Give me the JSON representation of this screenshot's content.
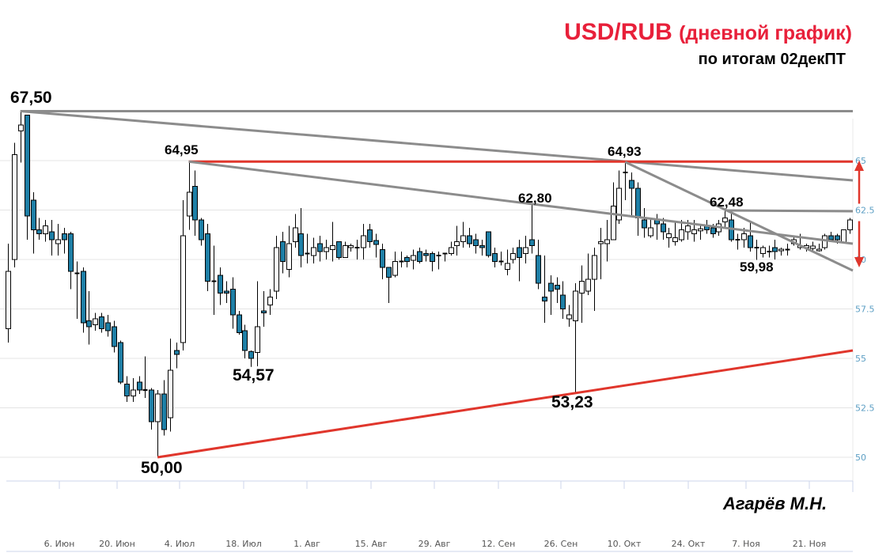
{
  "header": {
    "title_main": "USD/RUB",
    "title_paren": "(дневной график)",
    "subtitle": "по итогам 02декПТ"
  },
  "author": "Агарёв М.Н.",
  "colors": {
    "bull_candle": "#ffffff",
    "bear_candle": "#1e7fa6",
    "trendline_gray": "#8c8c8c",
    "trendline_red": "#e0362c",
    "title_red": "#e8203a",
    "axis_label": "#5d9fc4",
    "grid": "#e4e4e4"
  },
  "chart_data": {
    "type": "candlestick",
    "title": "USD/RUB (дневной график)",
    "subtitle": "по итогам 02декПТ",
    "ylim": [
      49,
      68.5
    ],
    "y_ticks": [
      50,
      52.5,
      55,
      57.5,
      60,
      62.5,
      65
    ],
    "y_tick_labels": [
      "50",
      "52.5",
      "55",
      "57.5",
      "60",
      "62.5",
      "65"
    ],
    "x_tick_labels": [
      "6. Июн",
      "20. Июн",
      "4. Июл",
      "18. Июл",
      "1. Авг",
      "15. Авг",
      "29. Авг",
      "12. Сен",
      "26. Сен",
      "10. Окт",
      "24. Окт",
      "7. Ноя",
      "21. Ноя"
    ],
    "grid": true,
    "ohlc_fields": [
      "open",
      "high",
      "low",
      "close"
    ],
    "candles": [
      [
        56.5,
        60.8,
        55.8,
        59.4
      ],
      [
        60.0,
        65.9,
        59.6,
        65.3
      ],
      [
        66.5,
        67.5,
        64.9,
        66.8
      ],
      [
        67.3,
        67.3,
        61.0,
        62.2
      ],
      [
        63.0,
        63.4,
        60.3,
        61.5
      ],
      [
        61.5,
        62.1,
        61.0,
        61.3
      ],
      [
        61.3,
        62.0,
        60.9,
        61.7
      ],
      [
        61.4,
        62.0,
        60.2,
        61.0
      ],
      [
        60.8,
        61.8,
        60.2,
        61.0
      ],
      [
        61.3,
        61.6,
        60.3,
        61.0
      ],
      [
        61.3,
        61.4,
        58.5,
        59.4
      ],
      [
        59.3,
        59.9,
        57.0,
        59.3
      ],
      [
        59.4,
        59.6,
        56.3,
        56.8
      ],
      [
        56.9,
        58.4,
        55.7,
        56.6
      ],
      [
        56.7,
        57.3,
        56.4,
        57.0
      ],
      [
        57.1,
        57.3,
        56.3,
        56.5
      ],
      [
        56.8,
        57.2,
        56.1,
        56.4
      ],
      [
        56.6,
        56.9,
        55.3,
        55.6
      ],
      [
        55.8,
        55.9,
        53.7,
        53.8
      ],
      [
        53.7,
        54.1,
        52.8,
        53.1
      ],
      [
        53.1,
        54.0,
        52.8,
        53.4
      ],
      [
        53.8,
        54.1,
        53.2,
        53.4
      ],
      [
        53.4,
        55.1,
        53.0,
        53.4
      ],
      [
        53.4,
        53.5,
        51.4,
        51.8
      ],
      [
        51.8,
        53.4,
        50.0,
        53.2
      ],
      [
        53.2,
        53.9,
        51.1,
        51.4
      ],
      [
        52.0,
        56.0,
        51.3,
        54.4
      ],
      [
        55.4,
        55.8,
        54.5,
        55.2
      ],
      [
        55.8,
        63.0,
        55.4,
        61.2
      ],
      [
        62.2,
        64.95,
        61.5,
        63.4
      ],
      [
        63.7,
        64.5,
        61.2,
        62.0
      ],
      [
        62.0,
        62.1,
        60.7,
        61.0
      ],
      [
        61.3,
        61.8,
        58.4,
        58.9
      ],
      [
        58.9,
        60.7,
        57.2,
        58.9
      ],
      [
        59.2,
        59.6,
        57.7,
        58.3
      ],
      [
        58.4,
        58.9,
        57.8,
        58.3
      ],
      [
        58.5,
        59.1,
        56.5,
        57.2
      ],
      [
        57.2,
        57.4,
        56.2,
        56.3
      ],
      [
        56.4,
        56.7,
        55.0,
        55.4
      ],
      [
        55.35,
        55.4,
        54.57,
        55.0
      ],
      [
        55.3,
        58.9,
        54.6,
        56.6
      ],
      [
        57.4,
        58.4,
        56.6,
        57.3
      ],
      [
        57.7,
        58.5,
        57.2,
        58.1
      ],
      [
        58.4,
        61.2,
        58.0,
        60.6
      ],
      [
        60.9,
        61.4,
        59.3,
        59.9
      ],
      [
        59.5,
        61.7,
        59.1,
        60.8
      ],
      [
        60.9,
        62.3,
        60.6,
        61.6
      ],
      [
        61.3,
        62.6,
        59.6,
        60.2
      ],
      [
        60.3,
        61.3,
        59.8,
        60.3
      ],
      [
        60.2,
        61.1,
        59.8,
        60.6
      ],
      [
        60.8,
        61.2,
        59.9,
        60.4
      ],
      [
        60.4,
        61.0,
        60.0,
        60.6
      ],
      [
        60.5,
        61.9,
        59.9,
        60.7
      ],
      [
        60.9,
        60.9,
        60.0,
        60.1
      ],
      [
        60.1,
        60.9,
        60.1,
        60.7
      ],
      [
        60.6,
        60.8,
        60.4,
        60.7
      ],
      [
        60.6,
        61.0,
        60.0,
        60.6
      ],
      [
        60.6,
        61.8,
        60.0,
        61.2
      ],
      [
        61.5,
        61.8,
        60.6,
        60.9
      ],
      [
        60.96,
        61.3,
        60.1,
        60.76
      ],
      [
        60.5,
        60.8,
        59.0,
        59.6
      ],
      [
        59.6,
        59.6,
        57.8,
        59.1
      ],
      [
        59.2,
        60.4,
        59.1,
        59.9
      ],
      [
        59.9,
        60.4,
        59.6,
        59.9
      ],
      [
        60.1,
        60.2,
        59.6,
        59.9
      ],
      [
        59.96,
        60.5,
        59.5,
        60.2
      ],
      [
        60.4,
        60.6,
        59.8,
        59.9
      ],
      [
        60.3,
        60.5,
        59.9,
        60.2
      ],
      [
        60.3,
        60.4,
        59.4,
        59.9
      ],
      [
        60.2,
        60.4,
        59.5,
        60.2
      ],
      [
        60.3,
        60.3,
        59.9,
        60.3
      ],
      [
        60.3,
        60.9,
        60.2,
        60.6
      ],
      [
        60.7,
        61.7,
        60.2,
        60.9
      ],
      [
        60.9,
        61.9,
        60.6,
        61.2
      ],
      [
        61.2,
        61.6,
        60.6,
        60.8
      ],
      [
        61.0,
        61.3,
        60.3,
        60.7
      ],
      [
        60.7,
        61.0,
        60.2,
        60.6
      ],
      [
        61.4,
        61.4,
        60.1,
        60.2
      ],
      [
        60.3,
        60.6,
        59.6,
        59.9
      ],
      [
        59.9,
        60.4,
        59.7,
        59.9
      ],
      [
        59.5,
        60.5,
        59.2,
        59.8
      ],
      [
        60.0,
        60.6,
        59.8,
        60.3
      ],
      [
        60.6,
        61.0,
        58.9,
        60.1
      ],
      [
        60.3,
        61.2,
        59.8,
        60.6
      ],
      [
        61.0,
        62.8,
        60.3,
        60.7
      ],
      [
        60.2,
        61.0,
        58.5,
        58.8
      ],
      [
        58.1,
        60.2,
        56.8,
        57.9
      ],
      [
        58.8,
        59.2,
        57.2,
        58.4
      ],
      [
        58.7,
        59.1,
        57.8,
        58.5
      ],
      [
        58.2,
        58.9,
        57.0,
        57.5
      ],
      [
        57.0,
        57.7,
        56.6,
        57.2
      ],
      [
        56.9,
        58.8,
        53.23,
        58.4
      ],
      [
        58.3,
        59.7,
        56.8,
        58.9
      ],
      [
        58.4,
        60.3,
        58.2,
        59.0
      ],
      [
        59.0,
        60.6,
        57.4,
        60.2
      ],
      [
        60.8,
        61.6,
        59.0,
        60.9
      ],
      [
        60.8,
        62.0,
        59.9,
        61.0
      ],
      [
        61.0,
        63.9,
        61.0,
        62.7
      ],
      [
        62.0,
        64.5,
        61.8,
        63.6
      ],
      [
        64.4,
        64.93,
        63.0,
        64.4
      ],
      [
        64.0,
        64.4,
        62.2,
        63.6
      ],
      [
        63.6,
        63.9,
        61.2,
        62.1
      ],
      [
        62.0,
        62.6,
        61.1,
        61.6
      ],
      [
        61.2,
        62.1,
        61.1,
        61.6
      ],
      [
        62.0,
        62.3,
        61.0,
        61.8
      ],
      [
        61.8,
        62.1,
        61.0,
        61.4
      ],
      [
        61.1,
        61.6,
        60.6,
        61.3
      ],
      [
        60.9,
        61.9,
        60.7,
        61.1
      ],
      [
        61.0,
        62.0,
        60.9,
        61.5
      ],
      [
        61.4,
        62.0,
        61.0,
        61.7
      ],
      [
        61.3,
        62.0,
        60.9,
        61.5
      ],
      [
        61.45,
        61.8,
        61.0,
        61.55
      ],
      [
        61.7,
        62.0,
        61.3,
        61.5
      ],
      [
        61.6,
        61.8,
        61.1,
        61.3
      ],
      [
        61.4,
        62.0,
        61.2,
        61.8
      ],
      [
        61.9,
        62.48,
        61.6,
        62.1
      ],
      [
        62.0,
        62.3,
        60.9,
        61.0
      ],
      [
        61.0,
        61.3,
        60.5,
        61.0
      ],
      [
        61.0,
        61.6,
        60.6,
        61.3
      ],
      [
        61.2,
        61.9,
        60.4,
        60.6
      ],
      [
        60.6,
        61.0,
        59.98,
        60.6
      ],
      [
        60.3,
        60.7,
        60.1,
        60.6
      ],
      [
        60.4,
        60.7,
        60.1,
        60.4
      ],
      [
        60.6,
        61.0,
        60.0,
        60.4
      ],
      [
        60.44,
        60.6,
        60.2,
        60.52
      ],
      [
        60.5,
        60.8,
        60.2,
        60.5
      ],
      [
        60.8,
        61.2,
        60.7,
        61.0
      ],
      [
        60.6,
        61.3,
        60.5,
        60.7
      ],
      [
        60.6,
        60.8,
        60.4,
        60.7
      ],
      [
        60.56,
        60.9,
        60.4,
        60.68
      ],
      [
        60.44,
        60.8,
        60.4,
        60.52
      ],
      [
        60.6,
        61.3,
        60.5,
        61.2
      ],
      [
        61.2,
        61.4,
        60.9,
        61.0
      ],
      [
        61.2,
        61.3,
        60.8,
        61.0
      ],
      [
        60.85,
        61.5,
        60.8,
        61.5
      ],
      [
        61.5,
        62.1,
        61.3,
        62.0
      ]
    ],
    "trendlines": [
      {
        "color": "gray",
        "from": {
          "candle": 2,
          "price": 67.5
        },
        "to": {
          "candle": "end",
          "price": 67.5
        }
      },
      {
        "color": "gray",
        "from": {
          "candle": 2,
          "price": 67.5
        },
        "to": {
          "candle": "end",
          "price": 64.0
        }
      },
      {
        "color": "red",
        "from": {
          "candle": 29,
          "price": 64.95
        },
        "to": {
          "candle": "end",
          "price": 64.95
        }
      },
      {
        "color": "gray",
        "from": {
          "candle": 29,
          "price": 64.95
        },
        "to": {
          "candle": "end",
          "price": 60.8
        }
      },
      {
        "color": "gray",
        "from": {
          "candle": 99,
          "price": 64.93
        },
        "to": {
          "candle": "end",
          "price": 59.44
        }
      },
      {
        "color": "gray",
        "from": {
          "candle": 115,
          "price": 62.48
        },
        "to": {
          "candle": "end",
          "price": 62.44
        }
      },
      {
        "color": "red",
        "from": {
          "candle": 24,
          "price": 50.0
        },
        "to": {
          "candle": "end",
          "price": 55.4
        }
      }
    ],
    "range_arrow": {
      "color": "red",
      "from": 65.0,
      "to": 59.6
    },
    "annotations": [
      "67,50",
      "64,95",
      "54,57",
      "50,00",
      "62,80",
      "53,23",
      "64,93",
      "62,48",
      "59,98"
    ]
  }
}
